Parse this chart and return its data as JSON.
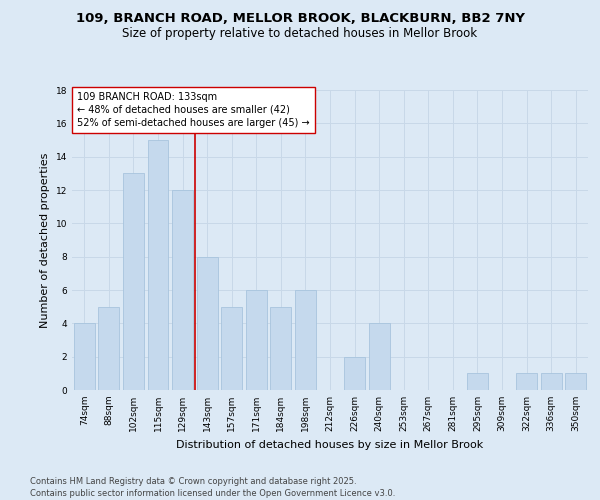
{
  "title1": "109, BRANCH ROAD, MELLOR BROOK, BLACKBURN, BB2 7NY",
  "title2": "Size of property relative to detached houses in Mellor Brook",
  "xlabel": "Distribution of detached houses by size in Mellor Brook",
  "ylabel": "Number of detached properties",
  "categories": [
    "74sqm",
    "88sqm",
    "102sqm",
    "115sqm",
    "129sqm",
    "143sqm",
    "157sqm",
    "171sqm",
    "184sqm",
    "198sqm",
    "212sqm",
    "226sqm",
    "240sqm",
    "253sqm",
    "267sqm",
    "281sqm",
    "295sqm",
    "309sqm",
    "322sqm",
    "336sqm",
    "350sqm"
  ],
  "values": [
    4,
    5,
    13,
    15,
    12,
    8,
    5,
    6,
    5,
    6,
    0,
    2,
    4,
    0,
    0,
    0,
    1,
    0,
    1,
    1,
    1
  ],
  "bar_color": "#c5d9ed",
  "bar_edgecolor": "#a8c4de",
  "grid_color": "#c8d8e8",
  "bg_color": "#dce9f5",
  "vline_x": 4.5,
  "vline_color": "#cc0000",
  "annotation_text": "109 BRANCH ROAD: 133sqm\n← 48% of detached houses are smaller (42)\n52% of semi-detached houses are larger (45) →",
  "annotation_box_facecolor": "#ffffff",
  "annotation_box_edgecolor": "#cc0000",
  "ylim": [
    0,
    18
  ],
  "yticks": [
    0,
    2,
    4,
    6,
    8,
    10,
    12,
    14,
    16,
    18
  ],
  "footer": "Contains HM Land Registry data © Crown copyright and database right 2025.\nContains public sector information licensed under the Open Government Licence v3.0.",
  "title_fontsize": 9.5,
  "subtitle_fontsize": 8.5,
  "axis_label_fontsize": 8,
  "tick_fontsize": 6.5,
  "annotation_fontsize": 7,
  "footer_fontsize": 6
}
